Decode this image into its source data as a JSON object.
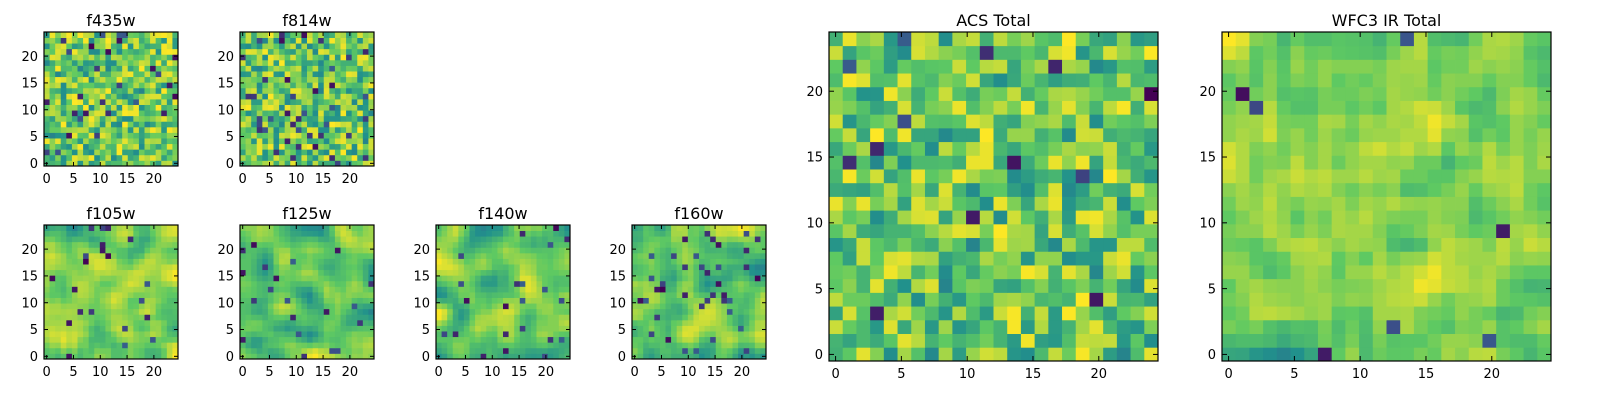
{
  "figure": {
    "colormap": [
      "#440154",
      "#3b528b",
      "#21918c",
      "#5ec962",
      "#fde725"
    ]
  },
  "chart_data": [
    {
      "type": "heatmap",
      "title": "f435w",
      "xlabel": "",
      "ylabel": "",
      "xlim": [
        0,
        24
      ],
      "ylim": [
        0,
        24
      ],
      "xticks": [
        "0",
        "5",
        "10",
        "15",
        "20"
      ],
      "yticks": [
        "0",
        "5",
        "10",
        "15",
        "20"
      ],
      "grid_size": 24,
      "grid": false,
      "seed": 11,
      "smoothness": 0,
      "extremes": 0.06,
      "values": []
    },
    {
      "type": "heatmap",
      "title": "f814w",
      "xlabel": "",
      "ylabel": "",
      "xlim": [
        0,
        24
      ],
      "ylim": [
        0,
        24
      ],
      "xticks": [
        "0",
        "5",
        "10",
        "15",
        "20"
      ],
      "yticks": [
        "0",
        "5",
        "10",
        "15",
        "20"
      ],
      "grid_size": 24,
      "grid": false,
      "seed": 23,
      "smoothness": 0,
      "extremes": 0.06,
      "values": []
    },
    {
      "type": "heatmap",
      "title": "f105w",
      "xlabel": "",
      "ylabel": "",
      "xlim": [
        0,
        24
      ],
      "ylim": [
        0,
        24
      ],
      "xticks": [
        "0",
        "5",
        "10",
        "15",
        "20"
      ],
      "yticks": [
        "0",
        "5",
        "10",
        "15",
        "20"
      ],
      "grid_size": 24,
      "grid": false,
      "seed": 37,
      "smoothness": 2,
      "extremes": 0.04,
      "values": []
    },
    {
      "type": "heatmap",
      "title": "f125w",
      "xlabel": "",
      "ylabel": "",
      "xlim": [
        0,
        24
      ],
      "ylim": [
        0,
        24
      ],
      "xticks": [
        "0",
        "5",
        "10",
        "15",
        "20"
      ],
      "yticks": [
        "0",
        "5",
        "10",
        "15",
        "20"
      ],
      "grid_size": 24,
      "grid": false,
      "seed": 41,
      "smoothness": 2,
      "extremes": 0.04,
      "values": []
    },
    {
      "type": "heatmap",
      "title": "f140w",
      "xlabel": "",
      "ylabel": "",
      "xlim": [
        0,
        24
      ],
      "ylim": [
        0,
        24
      ],
      "xticks": [
        "0",
        "5",
        "10",
        "15",
        "20"
      ],
      "yticks": [
        "0",
        "5",
        "10",
        "15",
        "20"
      ],
      "grid_size": 24,
      "grid": false,
      "seed": 53,
      "smoothness": 2,
      "extremes": 0.05,
      "values": []
    },
    {
      "type": "heatmap",
      "title": "f160w",
      "xlabel": "",
      "ylabel": "",
      "xlim": [
        0,
        24
      ],
      "ylim": [
        0,
        24
      ],
      "xticks": [
        "0",
        "5",
        "10",
        "15",
        "20"
      ],
      "yticks": [
        "0",
        "5",
        "10",
        "15",
        "20"
      ],
      "grid_size": 24,
      "grid": false,
      "seed": 67,
      "smoothness": 2,
      "extremes": 0.05,
      "values": []
    },
    {
      "type": "heatmap",
      "title": "ACS Total",
      "xlabel": "",
      "ylabel": "",
      "xlim": [
        0,
        24
      ],
      "ylim": [
        0,
        24
      ],
      "xticks": [
        "0",
        "5",
        "10",
        "15",
        "20"
      ],
      "yticks": [
        "0",
        "5",
        "10",
        "15",
        "20"
      ],
      "grid_size": 24,
      "grid": false,
      "seed": 79,
      "smoothness": 0,
      "extremes": 0.03,
      "values": []
    },
    {
      "type": "heatmap",
      "title": "WFC3 IR Total",
      "xlabel": "",
      "ylabel": "",
      "xlim": [
        0,
        24
      ],
      "ylim": [
        0,
        24
      ],
      "xticks": [
        "0",
        "5",
        "10",
        "15",
        "20"
      ],
      "yticks": [
        "0",
        "5",
        "10",
        "15",
        "20"
      ],
      "grid_size": 24,
      "grid": false,
      "seed": 97,
      "smoothness": 1,
      "extremes": 0.02,
      "values": []
    }
  ]
}
